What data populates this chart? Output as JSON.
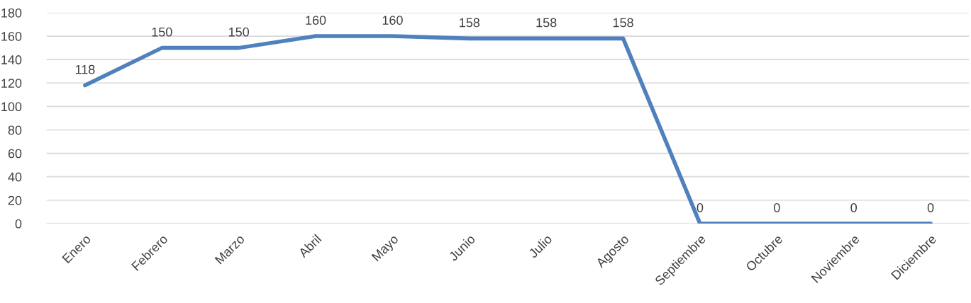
{
  "chart_data": {
    "type": "line",
    "categories": [
      "Enero",
      "Febrero",
      "Marzo",
      "Abril",
      "Mayo",
      "Junio",
      "Julio",
      "Agosto",
      "Septiembre",
      "Octubre",
      "Noviembre",
      "Diciembre"
    ],
    "series": [
      {
        "color": "#4f81bd",
        "values": [
          118,
          150,
          150,
          160,
          160,
          158,
          158,
          158,
          0,
          0,
          0,
          0
        ]
      }
    ],
    "ylim": [
      0,
      180
    ],
    "yticks": [
      0,
      20,
      40,
      60,
      80,
      100,
      120,
      140,
      160,
      180
    ],
    "grid": "y",
    "data_labels": true,
    "marker": "none",
    "line_style": "solid"
  }
}
